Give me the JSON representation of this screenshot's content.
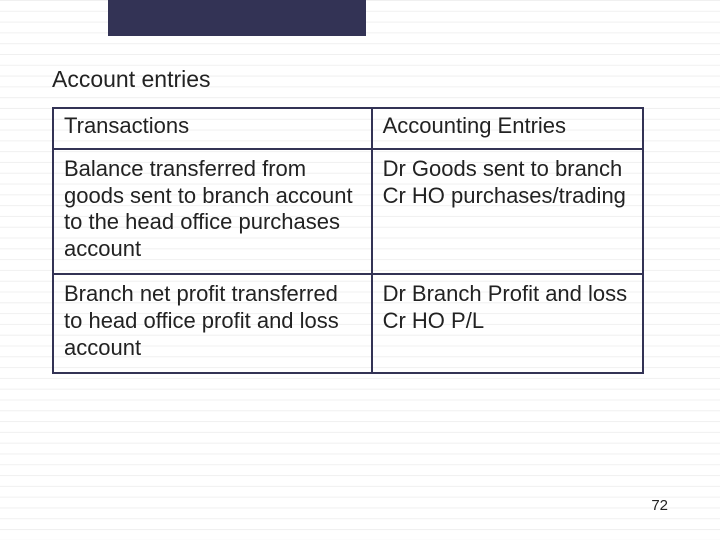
{
  "slide": {
    "heading": "Account entries",
    "page_number": "72",
    "colors": {
      "band": "#333355",
      "border": "#333355",
      "text": "#222222",
      "gridline": "#e6e6e6",
      "background": "#ffffff"
    },
    "typography": {
      "heading_fontsize": 23,
      "cell_fontsize": 22,
      "pagenum_fontsize": 15,
      "font_family": "Verdana"
    },
    "table": {
      "type": "table",
      "columns": [
        "Transactions",
        "Accounting Entries"
      ],
      "column_widths_pct": [
        54,
        46
      ],
      "border_color": "#333355",
      "border_width": 2,
      "rows": [
        {
          "transaction": "Balance transferred from goods sent to branch account to the head office purchases account",
          "entries": "Dr Goods sent to branch\nCr HO purchases/trading"
        },
        {
          "transaction": "Branch net profit transferred to head office profit and loss account",
          "entries": "Dr Branch Profit and loss\nCr HO P/L"
        }
      ]
    }
  }
}
